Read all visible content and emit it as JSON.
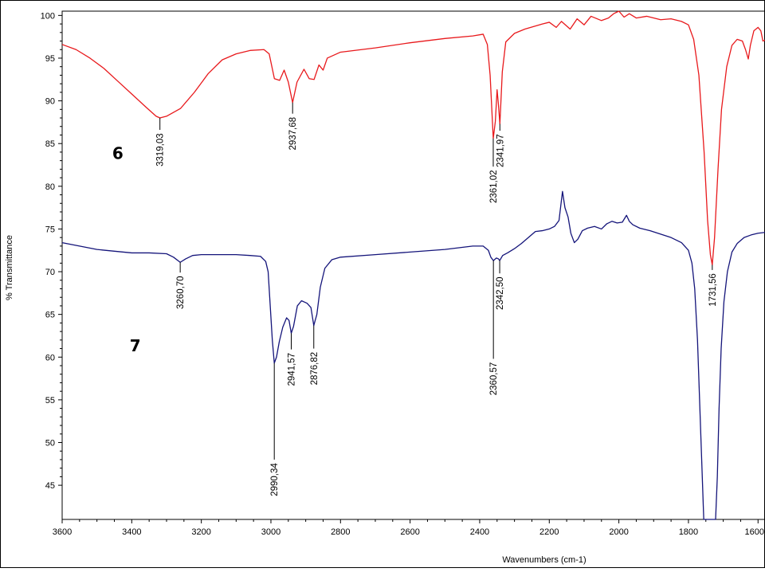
{
  "chart_data": {
    "type": "line",
    "title": "",
    "xlabel": "Wavenumbers (cm-1)",
    "ylabel": "% Transmittance",
    "xlim": [
      3600,
      1580
    ],
    "ylim": [
      41,
      100.5
    ],
    "x_reversed": true,
    "x_ticks": [
      "3600",
      "3400",
      "3200",
      "3000",
      "2800",
      "2600",
      "2400",
      "2200",
      "2000",
      "1800",
      "1600"
    ],
    "y_ticks": [
      "45",
      "50",
      "55",
      "60",
      "65",
      "70",
      "75",
      "80",
      "85",
      "90",
      "95",
      "100"
    ],
    "grid": false,
    "legend": "none",
    "series": [
      {
        "name": "6",
        "color": "#e8191c",
        "points": [
          [
            3600,
            96.6
          ],
          [
            3560,
            96.0
          ],
          [
            3520,
            95.0
          ],
          [
            3480,
            93.8
          ],
          [
            3440,
            92.3
          ],
          [
            3400,
            90.8
          ],
          [
            3360,
            89.3
          ],
          [
            3330,
            88.2
          ],
          [
            3319,
            88.0
          ],
          [
            3300,
            88.2
          ],
          [
            3260,
            89.1
          ],
          [
            3220,
            91.0
          ],
          [
            3180,
            93.2
          ],
          [
            3140,
            94.8
          ],
          [
            3100,
            95.5
          ],
          [
            3060,
            95.9
          ],
          [
            3020,
            96.0
          ],
          [
            3005,
            95.5
          ],
          [
            2990,
            92.6
          ],
          [
            2975,
            92.4
          ],
          [
            2962,
            93.6
          ],
          [
            2950,
            92.2
          ],
          [
            2937.68,
            89.8
          ],
          [
            2925,
            92.2
          ],
          [
            2905,
            93.7
          ],
          [
            2890,
            92.6
          ],
          [
            2876,
            92.5
          ],
          [
            2862,
            94.2
          ],
          [
            2850,
            93.6
          ],
          [
            2838,
            95.0
          ],
          [
            2800,
            95.7
          ],
          [
            2700,
            96.2
          ],
          [
            2600,
            96.8
          ],
          [
            2500,
            97.3
          ],
          [
            2420,
            97.6
          ],
          [
            2390,
            97.8
          ],
          [
            2378,
            96.6
          ],
          [
            2370,
            93.0
          ],
          [
            2361.02,
            85.6
          ],
          [
            2355,
            87.6
          ],
          [
            2350,
            91.3
          ],
          [
            2346,
            89.5
          ],
          [
            2341.97,
            87.3
          ],
          [
            2335,
            93.4
          ],
          [
            2325,
            96.9
          ],
          [
            2300,
            97.9
          ],
          [
            2270,
            98.4
          ],
          [
            2220,
            99.0
          ],
          [
            2200,
            99.2
          ],
          [
            2180,
            98.6
          ],
          [
            2165,
            99.3
          ],
          [
            2140,
            98.4
          ],
          [
            2120,
            99.6
          ],
          [
            2100,
            98.9
          ],
          [
            2080,
            99.9
          ],
          [
            2050,
            99.4
          ],
          [
            2030,
            99.7
          ],
          [
            2015,
            100.2
          ],
          [
            2000,
            100.5
          ],
          [
            1985,
            99.8
          ],
          [
            1970,
            100.2
          ],
          [
            1950,
            99.7
          ],
          [
            1920,
            99.9
          ],
          [
            1880,
            99.5
          ],
          [
            1850,
            99.6
          ],
          [
            1820,
            99.3
          ],
          [
            1800,
            98.9
          ],
          [
            1785,
            97.2
          ],
          [
            1770,
            93.0
          ],
          [
            1755,
            84.0
          ],
          [
            1745,
            76.0
          ],
          [
            1737,
            72.0
          ],
          [
            1731.56,
            70.8
          ],
          [
            1725,
            74.0
          ],
          [
            1715,
            82.0
          ],
          [
            1705,
            89.0
          ],
          [
            1690,
            94.0
          ],
          [
            1675,
            96.5
          ],
          [
            1660,
            97.2
          ],
          [
            1645,
            97.0
          ],
          [
            1636,
            96.0
          ],
          [
            1628,
            94.9
          ],
          [
            1622,
            96.5
          ],
          [
            1612,
            98.2
          ],
          [
            1600,
            98.6
          ],
          [
            1592,
            98.2
          ],
          [
            1586,
            97.0
          ],
          [
            1580,
            97.1
          ]
        ]
      },
      {
        "name": "7",
        "color": "#14147a",
        "points": [
          [
            3600,
            73.4
          ],
          [
            3550,
            73.0
          ],
          [
            3500,
            72.6
          ],
          [
            3450,
            72.4
          ],
          [
            3400,
            72.2
          ],
          [
            3350,
            72.2
          ],
          [
            3300,
            72.1
          ],
          [
            3280,
            71.7
          ],
          [
            3260.7,
            71.1
          ],
          [
            3245,
            71.5
          ],
          [
            3225,
            71.9
          ],
          [
            3200,
            72.0
          ],
          [
            3150,
            72.0
          ],
          [
            3100,
            72.0
          ],
          [
            3060,
            71.9
          ],
          [
            3030,
            71.8
          ],
          [
            3015,
            71.2
          ],
          [
            3008,
            70.0
          ],
          [
            3002,
            66.0
          ],
          [
            2996,
            62.0
          ],
          [
            2990.34,
            59.3
          ],
          [
            2984,
            60.0
          ],
          [
            2976,
            61.8
          ],
          [
            2966,
            63.5
          ],
          [
            2955,
            64.6
          ],
          [
            2948,
            64.3
          ],
          [
            2941.57,
            62.8
          ],
          [
            2935,
            63.6
          ],
          [
            2924,
            66.0
          ],
          [
            2912,
            66.6
          ],
          [
            2896,
            66.3
          ],
          [
            2885,
            65.8
          ],
          [
            2876.82,
            63.7
          ],
          [
            2868,
            65.0
          ],
          [
            2858,
            68.2
          ],
          [
            2845,
            70.4
          ],
          [
            2825,
            71.4
          ],
          [
            2800,
            71.7
          ],
          [
            2700,
            72.0
          ],
          [
            2600,
            72.3
          ],
          [
            2500,
            72.6
          ],
          [
            2420,
            73.0
          ],
          [
            2390,
            73.0
          ],
          [
            2375,
            72.5
          ],
          [
            2368,
            71.7
          ],
          [
            2360.57,
            71.3
          ],
          [
            2352,
            71.6
          ],
          [
            2346,
            71.5
          ],
          [
            2342.5,
            71.3
          ],
          [
            2334,
            71.9
          ],
          [
            2320,
            72.2
          ],
          [
            2300,
            72.7
          ],
          [
            2280,
            73.3
          ],
          [
            2260,
            74.0
          ],
          [
            2240,
            74.7
          ],
          [
            2220,
            74.8
          ],
          [
            2200,
            75.0
          ],
          [
            2185,
            75.3
          ],
          [
            2172,
            76.0
          ],
          [
            2162,
            79.4
          ],
          [
            2155,
            77.5
          ],
          [
            2146,
            76.4
          ],
          [
            2138,
            74.5
          ],
          [
            2128,
            73.4
          ],
          [
            2118,
            73.8
          ],
          [
            2105,
            74.8
          ],
          [
            2090,
            75.1
          ],
          [
            2070,
            75.3
          ],
          [
            2050,
            75.0
          ],
          [
            2035,
            75.6
          ],
          [
            2020,
            75.9
          ],
          [
            2005,
            75.7
          ],
          [
            1990,
            75.8
          ],
          [
            1978,
            76.6
          ],
          [
            1970,
            75.9
          ],
          [
            1960,
            75.5
          ],
          [
            1940,
            75.1
          ],
          [
            1910,
            74.8
          ],
          [
            1880,
            74.4
          ],
          [
            1850,
            74.0
          ],
          [
            1820,
            73.4
          ],
          [
            1800,
            72.5
          ],
          [
            1790,
            71.0
          ],
          [
            1782,
            68.0
          ],
          [
            1774,
            62.0
          ],
          [
            1768,
            55.0
          ],
          [
            1762,
            48.0
          ],
          [
            1756,
            41.0
          ],
          [
            1752,
            41.0
          ],
          [
            1746,
            41.0
          ],
          [
            1740,
            41.0
          ],
          [
            1735,
            41.0
          ],
          [
            1731,
            41.0
          ],
          [
            1727,
            41.0
          ],
          [
            1722,
            41.0
          ],
          [
            1717,
            46.0
          ],
          [
            1712,
            54.0
          ],
          [
            1706,
            61.0
          ],
          [
            1698,
            66.5
          ],
          [
            1688,
            70.0
          ],
          [
            1675,
            72.3
          ],
          [
            1660,
            73.3
          ],
          [
            1640,
            74.0
          ],
          [
            1620,
            74.3
          ],
          [
            1600,
            74.5
          ],
          [
            1580,
            74.6
          ]
        ]
      }
    ],
    "annotations": [
      {
        "series": "6",
        "text": "3319,03",
        "x": 3319,
        "peak_y": 88.0,
        "line_end_y": 86.6,
        "text_end_y": 86.2
      },
      {
        "series": "6",
        "text": "2937,68",
        "x": 2937.68,
        "peak_y": 89.8,
        "line_end_y": 88.5,
        "text_end_y": 88.1
      },
      {
        "series": "6",
        "text": "2361,02",
        "x": 2361.02,
        "peak_y": 85.6,
        "line_end_y": 82.3,
        "text_end_y": 81.9
      },
      {
        "series": "6",
        "text": "2341,97",
        "x": 2341.97,
        "peak_y": 87.3,
        "line_end_y": 86.5,
        "text_end_y": 86.1
      },
      {
        "series": "6",
        "text": "1731,56",
        "x": 1731.56,
        "peak_y": 70.8,
        "line_end_y": 70.2,
        "text_end_y": 69.8
      },
      {
        "series": "7",
        "text": "3260,70",
        "x": 3260.7,
        "peak_y": 71.1,
        "line_end_y": 69.9,
        "text_end_y": 69.5
      },
      {
        "series": "7",
        "text": "2990,34",
        "x": 2990.34,
        "peak_y": 59.3,
        "line_end_y": 48.0,
        "text_end_y": 47.6
      },
      {
        "series": "7",
        "text": "2941,57",
        "x": 2941.57,
        "peak_y": 62.8,
        "line_end_y": 60.9,
        "text_end_y": 60.5
      },
      {
        "series": "7",
        "text": "2876,82",
        "x": 2876.82,
        "peak_y": 63.7,
        "line_end_y": 61.0,
        "text_end_y": 60.6
      },
      {
        "series": "7",
        "text": "2360,57",
        "x": 2360.57,
        "peak_y": 71.3,
        "line_end_y": 59.8,
        "text_end_y": 59.4
      },
      {
        "series": "7",
        "text": "2342,50",
        "x": 2342.5,
        "peak_y": 71.3,
        "line_end_y": 69.8,
        "text_end_y": 69.4
      }
    ],
    "sample_labels": [
      {
        "text": "6",
        "x": 3440,
        "y": 83.2
      },
      {
        "text": "7",
        "x": 3390,
        "y": 60.7
      }
    ]
  }
}
